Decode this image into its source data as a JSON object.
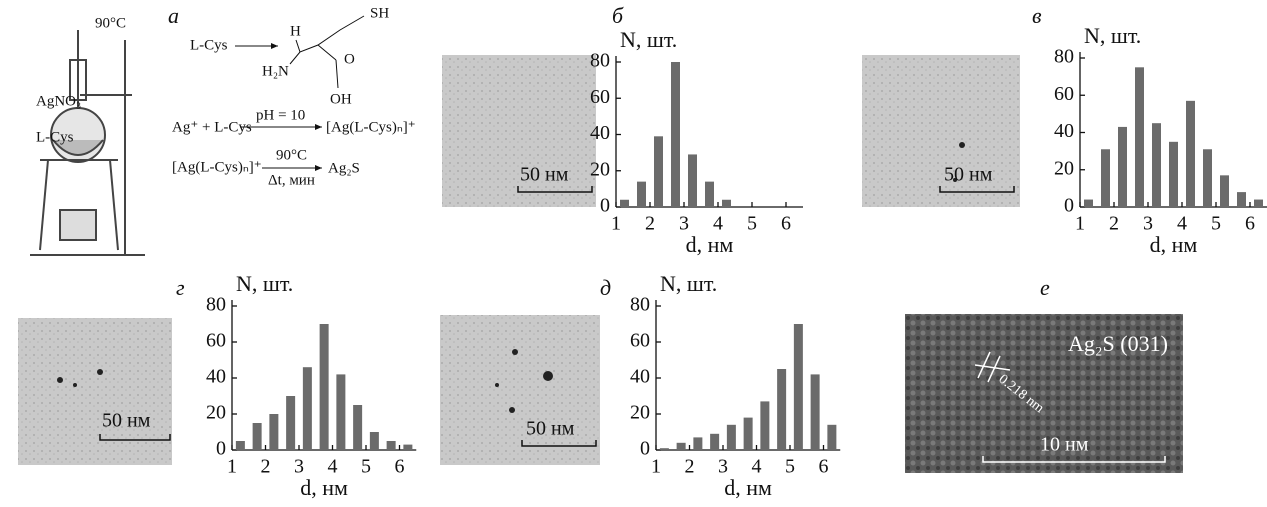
{
  "scheme": {
    "label": "а",
    "temperature": "90°C",
    "reagent_1": "AgNO₃",
    "reagent_2": "L-Cys",
    "molecule": {
      "name": "L-Cys",
      "sh": "SH",
      "h": "H",
      "nh2": "H₂N",
      "o": "O",
      "oh": "OH"
    },
    "step_1": {
      "left": "Ag⁺ + L-Cys",
      "condition": "pH = 10",
      "right": "[Ag(L-Cys)ₙ]⁺"
    },
    "step_2": {
      "left": "[Ag(L-Cys)ₙ]⁺",
      "condition_top": "90°C",
      "condition_bottom": "Δt, мин",
      "right": "Ag₂S"
    }
  },
  "images": [
    {
      "scale": "50 нм"
    },
    {
      "scale": "50 нм"
    },
    {
      "scale": "50 нм"
    },
    {
      "scale": "50 нм"
    }
  ],
  "hrtem": {
    "label": "е",
    "phase": "Ag₂S (031)",
    "spacing": "0.218 nm",
    "scale": "10 нм"
  },
  "chart_data": [
    {
      "type": "bar",
      "panel_label": "б",
      "ylabel": "N, шт.",
      "xlabel": "d, нм",
      "color": "#6b6b6b",
      "x": [
        1.25,
        1.75,
        2.25,
        2.75,
        3.25,
        3.75,
        4.25
      ],
      "values": [
        4,
        14,
        39,
        80,
        29,
        14,
        4
      ],
      "xlim": [
        1,
        6.5
      ],
      "xticks": [
        1,
        2,
        3,
        4,
        5,
        6
      ],
      "ylim": [
        0,
        80
      ],
      "yticks": [
        0,
        20,
        40,
        60,
        80
      ]
    },
    {
      "type": "bar",
      "panel_label": "в",
      "ylabel": "N, шт.",
      "xlabel": "d, нм",
      "color": "#6b6b6b",
      "x": [
        1.25,
        1.75,
        2.25,
        2.75,
        3.25,
        3.75,
        4.25,
        4.75,
        5.25,
        5.75,
        6.25
      ],
      "values": [
        4,
        31,
        43,
        75,
        45,
        35,
        57,
        31,
        17,
        8,
        4
      ],
      "xlim": [
        1,
        6.5
      ],
      "xticks": [
        1,
        2,
        3,
        4,
        5,
        6
      ],
      "ylim": [
        0,
        80
      ],
      "yticks": [
        0,
        20,
        40,
        60,
        80
      ]
    },
    {
      "type": "bar",
      "panel_label": "г",
      "ylabel": "N, шт.",
      "xlabel": "d, нм",
      "color": "#6b6b6b",
      "x": [
        1.25,
        1.75,
        2.25,
        2.75,
        3.25,
        3.75,
        4.25,
        4.75,
        5.25,
        5.75,
        6.25
      ],
      "values": [
        5,
        15,
        20,
        30,
        46,
        70,
        42,
        25,
        10,
        5,
        3
      ],
      "xlim": [
        1,
        6.5
      ],
      "xticks": [
        1,
        2,
        3,
        4,
        5,
        6
      ],
      "ylim": [
        0,
        80
      ],
      "yticks": [
        0,
        20,
        40,
        60,
        80
      ]
    },
    {
      "type": "bar",
      "panel_label": "д",
      "ylabel": "N, шт.",
      "xlabel": "d, нм",
      "color": "#6b6b6b",
      "x": [
        1.25,
        1.75,
        2.25,
        2.75,
        3.25,
        3.75,
        4.25,
        4.75,
        5.25,
        5.75,
        6.25
      ],
      "values": [
        1,
        4,
        7,
        9,
        14,
        18,
        27,
        45,
        70,
        42,
        14
      ],
      "xlim": [
        1,
        6.5
      ],
      "xticks": [
        1,
        2,
        3,
        4,
        5,
        6
      ],
      "ylim": [
        0,
        80
      ],
      "yticks": [
        0,
        20,
        40,
        60,
        80
      ]
    }
  ]
}
